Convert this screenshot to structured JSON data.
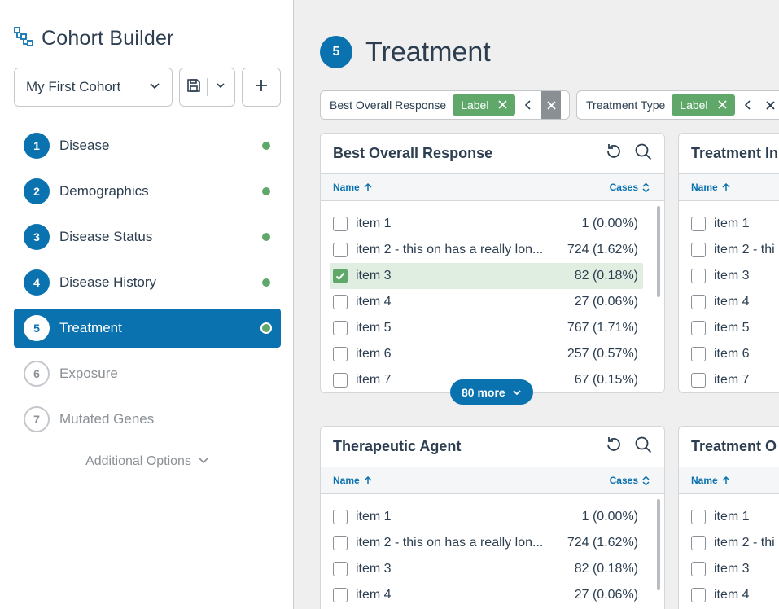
{
  "sidebar": {
    "app_title": "Cohort Builder",
    "cohort_name": "My First Cohort",
    "steps": [
      {
        "num": "1",
        "label": "Disease"
      },
      {
        "num": "2",
        "label": "Demographics"
      },
      {
        "num": "3",
        "label": "Disease Status"
      },
      {
        "num": "4",
        "label": "Disease History"
      },
      {
        "num": "5",
        "label": "Treatment"
      },
      {
        "num": "6",
        "label": "Exposure"
      },
      {
        "num": "7",
        "label": "Mutated Genes"
      }
    ],
    "additional_options": "Additional Options"
  },
  "main": {
    "step_num": "5",
    "title": "Treatment",
    "filters": [
      {
        "name": "Best Overall Response",
        "tag": "Label"
      },
      {
        "name": "Treatment Type",
        "tag": "Label"
      }
    ],
    "columns": {
      "name": "Name",
      "cases": "Cases"
    },
    "cards": [
      {
        "title": "Best Overall Response",
        "rows": [
          {
            "label": "item 1",
            "count": "1 (0.00%)"
          },
          {
            "label": "item 2 - this on has a really lon...",
            "count": "724 (1.62%)"
          },
          {
            "label": "item 3",
            "count": "82 (0.18%)"
          },
          {
            "label": "item 4",
            "count": "27 (0.06%)"
          },
          {
            "label": "item 5",
            "count": "767 (1.71%)"
          },
          {
            "label": "item 6",
            "count": "257 (0.57%)"
          },
          {
            "label": "item 7",
            "count": "67 (0.15%)"
          }
        ],
        "more_label": "80 more"
      },
      {
        "title": "Treatment In",
        "rows": [
          {
            "label": "item 1"
          },
          {
            "label": "item 2 - thi"
          },
          {
            "label": "item 3"
          },
          {
            "label": "item 4"
          },
          {
            "label": "item 5"
          },
          {
            "label": "item 6"
          },
          {
            "label": "item 7"
          }
        ]
      },
      {
        "title": "Therapeutic Agent",
        "rows": [
          {
            "label": "item 1",
            "count": "1 (0.00%)"
          },
          {
            "label": "item 2 - this on has a really lon...",
            "count": "724 (1.62%)"
          },
          {
            "label": "item 3",
            "count": "82 (0.18%)"
          },
          {
            "label": "item 4",
            "count": "27 (0.06%)"
          }
        ]
      },
      {
        "title": "Treatment O",
        "rows": [
          {
            "label": "item 1"
          },
          {
            "label": "item 2 - thi"
          },
          {
            "label": "item 3"
          },
          {
            "label": "item 4"
          }
        ]
      }
    ]
  },
  "colors": {
    "primary": "#0b72b0",
    "success": "#5fa86a",
    "background": "#efefef"
  }
}
